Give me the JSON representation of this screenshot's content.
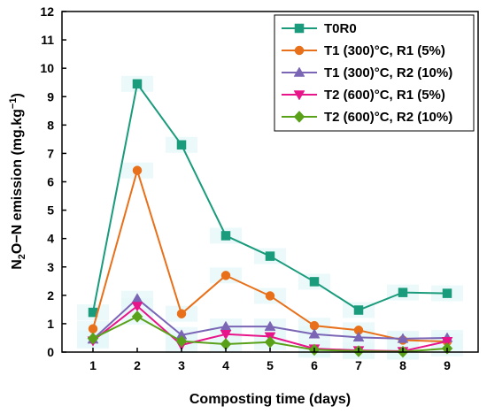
{
  "chart_data": {
    "type": "line",
    "x": [
      1,
      2,
      3,
      4,
      5,
      6,
      7,
      8,
      9
    ],
    "xlim": [
      0.3,
      9.7
    ],
    "ylim": [
      0,
      12
    ],
    "xticks": [
      1,
      2,
      3,
      4,
      5,
      6,
      7,
      8,
      9
    ],
    "yticks": [
      0,
      1,
      2,
      3,
      4,
      5,
      6,
      7,
      8,
      9,
      10,
      11,
      12
    ],
    "xlabel": "Composting time (days)",
    "ylabel_parts": {
      "pre": "N",
      "sub": "2",
      "post": "O−N emission (mg.kg",
      "sup": "−1",
      "end": ")"
    },
    "grid": false,
    "legend_position": "top-right",
    "series": [
      {
        "name": "T0R0",
        "color": "#1a9b7c",
        "marker": "square",
        "values": [
          1.4,
          9.45,
          7.3,
          4.1,
          3.38,
          2.48,
          1.48,
          2.1,
          2.07
        ]
      },
      {
        "name": "T1 (300)°C, R1 (5%)",
        "color": "#e8701a",
        "marker": "circle",
        "values": [
          0.82,
          6.4,
          1.35,
          2.7,
          1.98,
          0.93,
          0.77,
          0.42,
          0.37
        ]
      },
      {
        "name": "T1 (300)°C, R2 (10%)",
        "color": "#7b66b6",
        "marker": "triangle-up",
        "values": [
          0.45,
          1.88,
          0.6,
          0.9,
          0.9,
          0.63,
          0.52,
          0.47,
          0.5
        ]
      },
      {
        "name": "T2 (600)°C, R1 (5%)",
        "color": "#e8158a",
        "marker": "triangle-down",
        "values": [
          0.4,
          1.62,
          0.25,
          0.63,
          0.55,
          0.12,
          0.06,
          0.03,
          0.38
        ]
      },
      {
        "name": "T2 (600)°C, R2 (10%)",
        "color": "#5aa11a",
        "marker": "diamond",
        "values": [
          0.48,
          1.25,
          0.38,
          0.28,
          0.35,
          0.08,
          0.03,
          0.01,
          0.13
        ]
      }
    ]
  }
}
